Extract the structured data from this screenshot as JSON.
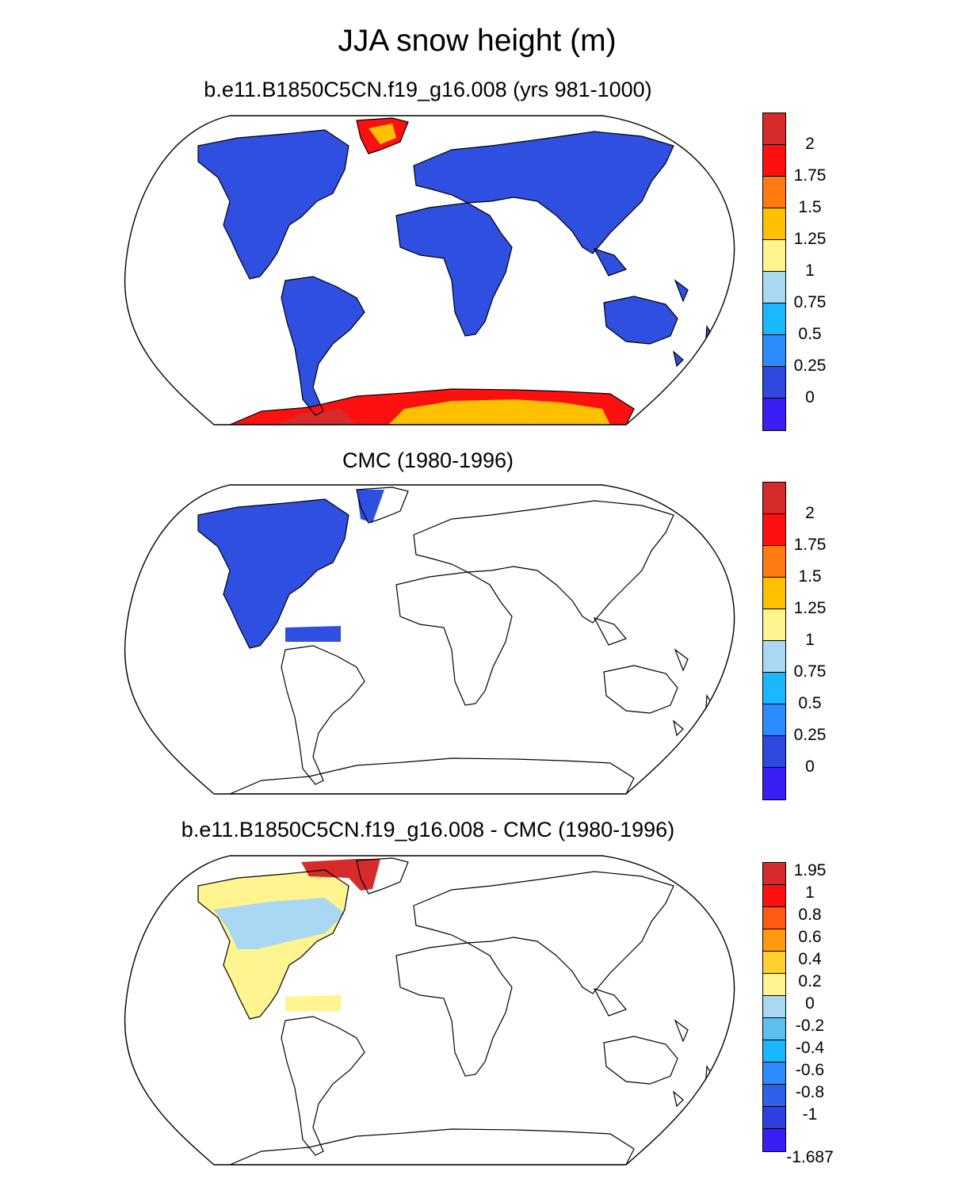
{
  "figure": {
    "title": "JJA snow height (m)"
  },
  "panels": [
    {
      "title": "b.e11.B1850C5CN.f19_g16.008 (yrs 981-1000)",
      "colorbar_labels": [
        "2",
        "1.75",
        "1.5",
        "1.25",
        "1",
        "0.75",
        "0.5",
        "0.25",
        "0"
      ],
      "colorbar_colors": [
        "#d72a2a",
        "#ff1010",
        "#ff7a10",
        "#ffc000",
        "#fff48f",
        "#a9d8f2",
        "#1ab8ff",
        "#2c8cff",
        "#2f48e0",
        "#3a1ff5"
      ]
    },
    {
      "title": "CMC (1980-1996)",
      "colorbar_labels": [
        "2",
        "1.75",
        "1.5",
        "1.25",
        "1",
        "0.75",
        "0.5",
        "0.25",
        "0"
      ],
      "colorbar_colors": [
        "#d72a2a",
        "#ff1010",
        "#ff7a10",
        "#ffc000",
        "#fff48f",
        "#a9d8f2",
        "#1ab8ff",
        "#2c8cff",
        "#2f48e0",
        "#3a1ff5"
      ]
    },
    {
      "title": "b.e11.B1850C5CN.f19_g16.008 - CMC (1980-1996)",
      "colorbar_labels": [
        "1.95",
        "1",
        "0.8",
        "0.6",
        "0.4",
        "0.2",
        "0",
        "-0.2",
        "-0.4",
        "-0.6",
        "-0.8",
        "-1",
        "-1.687"
      ],
      "colorbar_colors": [
        "#d72a2a",
        "#ff1010",
        "#ff5a10",
        "#ff9a10",
        "#ffd030",
        "#fff48f",
        "#a9d8f2",
        "#5cc0f0",
        "#1ab8ff",
        "#2c8cff",
        "#2f60e8",
        "#2f3ee0",
        "#3a1ff5"
      ]
    }
  ],
  "map_fills": {
    "land_snow": "#2f4fe0",
    "greenland_snow": "#ff1010",
    "antarctica_snow": "#ffc000",
    "diff_positive": "#fff48f",
    "diff_negative": "#a9d8f2",
    "diff_greenland": "#d72a2a"
  }
}
